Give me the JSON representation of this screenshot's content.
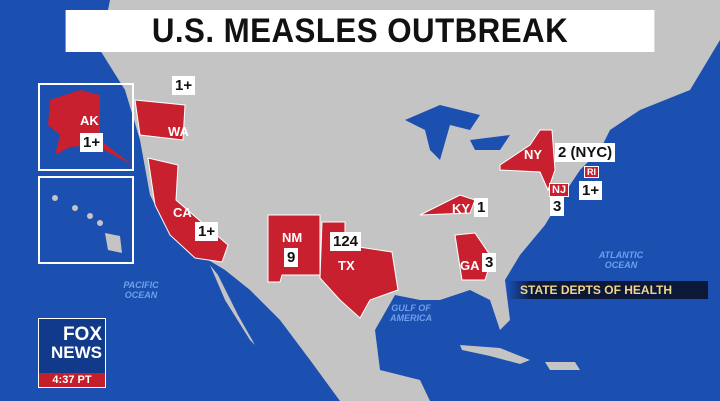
{
  "title": "U.S. MEASLES OUTBREAK",
  "source": "STATE DEPTS OF HEALTH",
  "colors": {
    "ocean": "#1b4fb0",
    "land": "#c4c4c4",
    "outbreak_state": "#c8202f",
    "label_box": "#ffffff"
  },
  "states": [
    {
      "abbr": "AK",
      "count": "1+"
    },
    {
      "abbr": "WA",
      "count": "1+"
    },
    {
      "abbr": "CA",
      "count": "1+"
    },
    {
      "abbr": "NM",
      "count": "9"
    },
    {
      "abbr": "TX",
      "count": "124"
    },
    {
      "abbr": "KY",
      "count": "1"
    },
    {
      "abbr": "NY",
      "count": "2 (NYC)"
    },
    {
      "abbr": "NJ",
      "count": "3"
    },
    {
      "abbr": "RI",
      "count": "1+"
    },
    {
      "abbr": "GA",
      "count": "3"
    }
  ],
  "oceans": {
    "pacific": "PACIFIC OCEAN",
    "atlantic": "ATLANTIC OCEAN",
    "gulf": "GULF OF AMERICA"
  },
  "logo": {
    "line1": "FOX",
    "line2": "NEWS",
    "time": "4:37 PT"
  }
}
